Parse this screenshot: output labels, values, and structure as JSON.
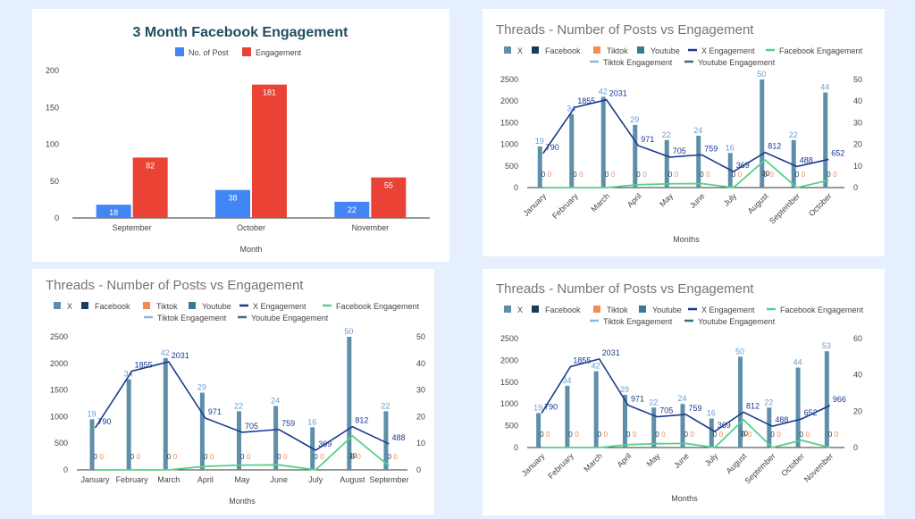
{
  "chart_data": [
    {
      "id": "p1",
      "type": "bar",
      "title": "3 Month Facebook Engagement",
      "xlabel": "Month",
      "ylabel": "",
      "ylim": [
        0,
        200
      ],
      "yticks": [
        0,
        50,
        100,
        150,
        200
      ],
      "categories": [
        "September",
        "October",
        "November"
      ],
      "series": [
        {
          "name": "No. of Post",
          "values": [
            18,
            38,
            22
          ],
          "color": "#4285f4"
        },
        {
          "name": "Engagement",
          "values": [
            82,
            181,
            55
          ],
          "color": "#ea4335"
        }
      ],
      "legend_position": "top",
      "grid": false
    },
    {
      "id": "p2",
      "type": "bar",
      "title": "Threads - Number of Posts vs Engagement",
      "xlabel": "Months",
      "ylabel": "",
      "categories": [
        "January",
        "February",
        "March",
        "April",
        "May",
        "June",
        "July",
        "August",
        "September",
        "October"
      ],
      "ylim_left": [
        0,
        2500
      ],
      "yticks_left": [
        0,
        500,
        1000,
        1500,
        2000,
        2500
      ],
      "ylim_right": [
        0,
        50
      ],
      "yticks_right": [
        0,
        10,
        20,
        30,
        40,
        50
      ],
      "legend": [
        "X",
        "Facebook",
        "Tiktok",
        "Youtube",
        "X Engagement",
        "Facebook Engagement",
        "Tiktok Engagement",
        "Youtube Engagement"
      ],
      "bars": {
        "name": "X",
        "values": [
          19,
          34,
          42,
          29,
          22,
          24,
          16,
          50,
          22,
          44
        ],
        "color": "#5f8fa8"
      },
      "small_bar_labels": [
        "0",
        "0"
      ],
      "lines": [
        {
          "name": "X Engagement",
          "values": [
            790,
            1855,
            2031,
            971,
            705,
            759,
            369,
            812,
            488,
            652
          ],
          "color": "#1a3a8f",
          "labelled": true
        },
        {
          "name": "Facebook Engagement",
          "values": [
            0,
            0,
            0,
            67,
            88,
            93,
            0,
            638,
            0,
            167
          ],
          "color": "#57d08a",
          "labelled": false
        }
      ],
      "extra_labels": [
        "30"
      ],
      "legend_position": "top",
      "grid": false
    },
    {
      "id": "p3",
      "type": "bar",
      "title": "Threads - Number of Posts vs Engagement",
      "xlabel": "Months",
      "ylabel": "",
      "categories": [
        "January",
        "February",
        "March",
        "April",
        "May",
        "June",
        "July",
        "August",
        "September"
      ],
      "ylim_left": [
        0,
        2500
      ],
      "yticks_left": [
        0,
        500,
        1000,
        1500,
        2000,
        2500
      ],
      "ylim_right": [
        0,
        50
      ],
      "yticks_right": [
        0,
        10,
        20,
        30,
        40,
        50
      ],
      "legend": [
        "X",
        "Facebook",
        "Tiktok",
        "Youtube",
        "X Engagement",
        "Facebook Engagement",
        "Tiktok Engagement",
        "Youtube Engagement"
      ],
      "bars": {
        "name": "X",
        "values": [
          19,
          34,
          42,
          29,
          22,
          24,
          16,
          50,
          22
        ],
        "color": "#5f8fa8"
      },
      "small_bar_labels": [
        "0",
        "0"
      ],
      "lines": [
        {
          "name": "X Engagement",
          "values": [
            790,
            1855,
            2031,
            971,
            705,
            759,
            369,
            812,
            488
          ],
          "color": "#1a3a8f",
          "labelled": true
        },
        {
          "name": "Facebook Engagement",
          "values": [
            0,
            0,
            0,
            67,
            88,
            93,
            0,
            638,
            75
          ],
          "color": "#57d08a",
          "labelled": false
        }
      ],
      "extra_labels": [
        "30"
      ],
      "legend_position": "top",
      "grid": false
    },
    {
      "id": "p4",
      "type": "bar",
      "title": "Threads - Number of Posts vs Engagement",
      "xlabel": "Months",
      "ylabel": "",
      "categories": [
        "January",
        "February",
        "March",
        "April",
        "May",
        "June",
        "July",
        "August",
        "September",
        "October",
        "November"
      ],
      "ylim_left": [
        0,
        2500
      ],
      "yticks_left": [
        0,
        500,
        1000,
        1500,
        2000,
        2500
      ],
      "ylim_right": [
        0,
        60
      ],
      "yticks_right": [
        0,
        20,
        40,
        60
      ],
      "legend": [
        "X",
        "Facebook",
        "Tiktok",
        "Youtube",
        "X Engagement",
        "Facebook Engagement",
        "Tiktok Engagement",
        "Youtube Engagement"
      ],
      "bars": {
        "name": "X",
        "values": [
          19,
          34,
          42,
          29,
          22,
          24,
          16,
          50,
          22,
          44,
          53
        ],
        "color": "#5f8fa8"
      },
      "small_bar_labels": [
        "0",
        "0"
      ],
      "lines": [
        {
          "name": "X Engagement",
          "values": [
            790,
            1855,
            2031,
            971,
            705,
            759,
            369,
            812,
            488,
            652,
            966
          ],
          "color": "#1a3a8f",
          "labelled": true
        },
        {
          "name": "Facebook Engagement",
          "values": [
            0,
            0,
            0,
            67,
            88,
            93,
            0,
            638,
            0,
            167,
            0
          ],
          "color": "#57d08a",
          "labelled": false
        }
      ],
      "extra_labels": [
        "30"
      ],
      "legend_position": "top",
      "grid": false
    }
  ]
}
